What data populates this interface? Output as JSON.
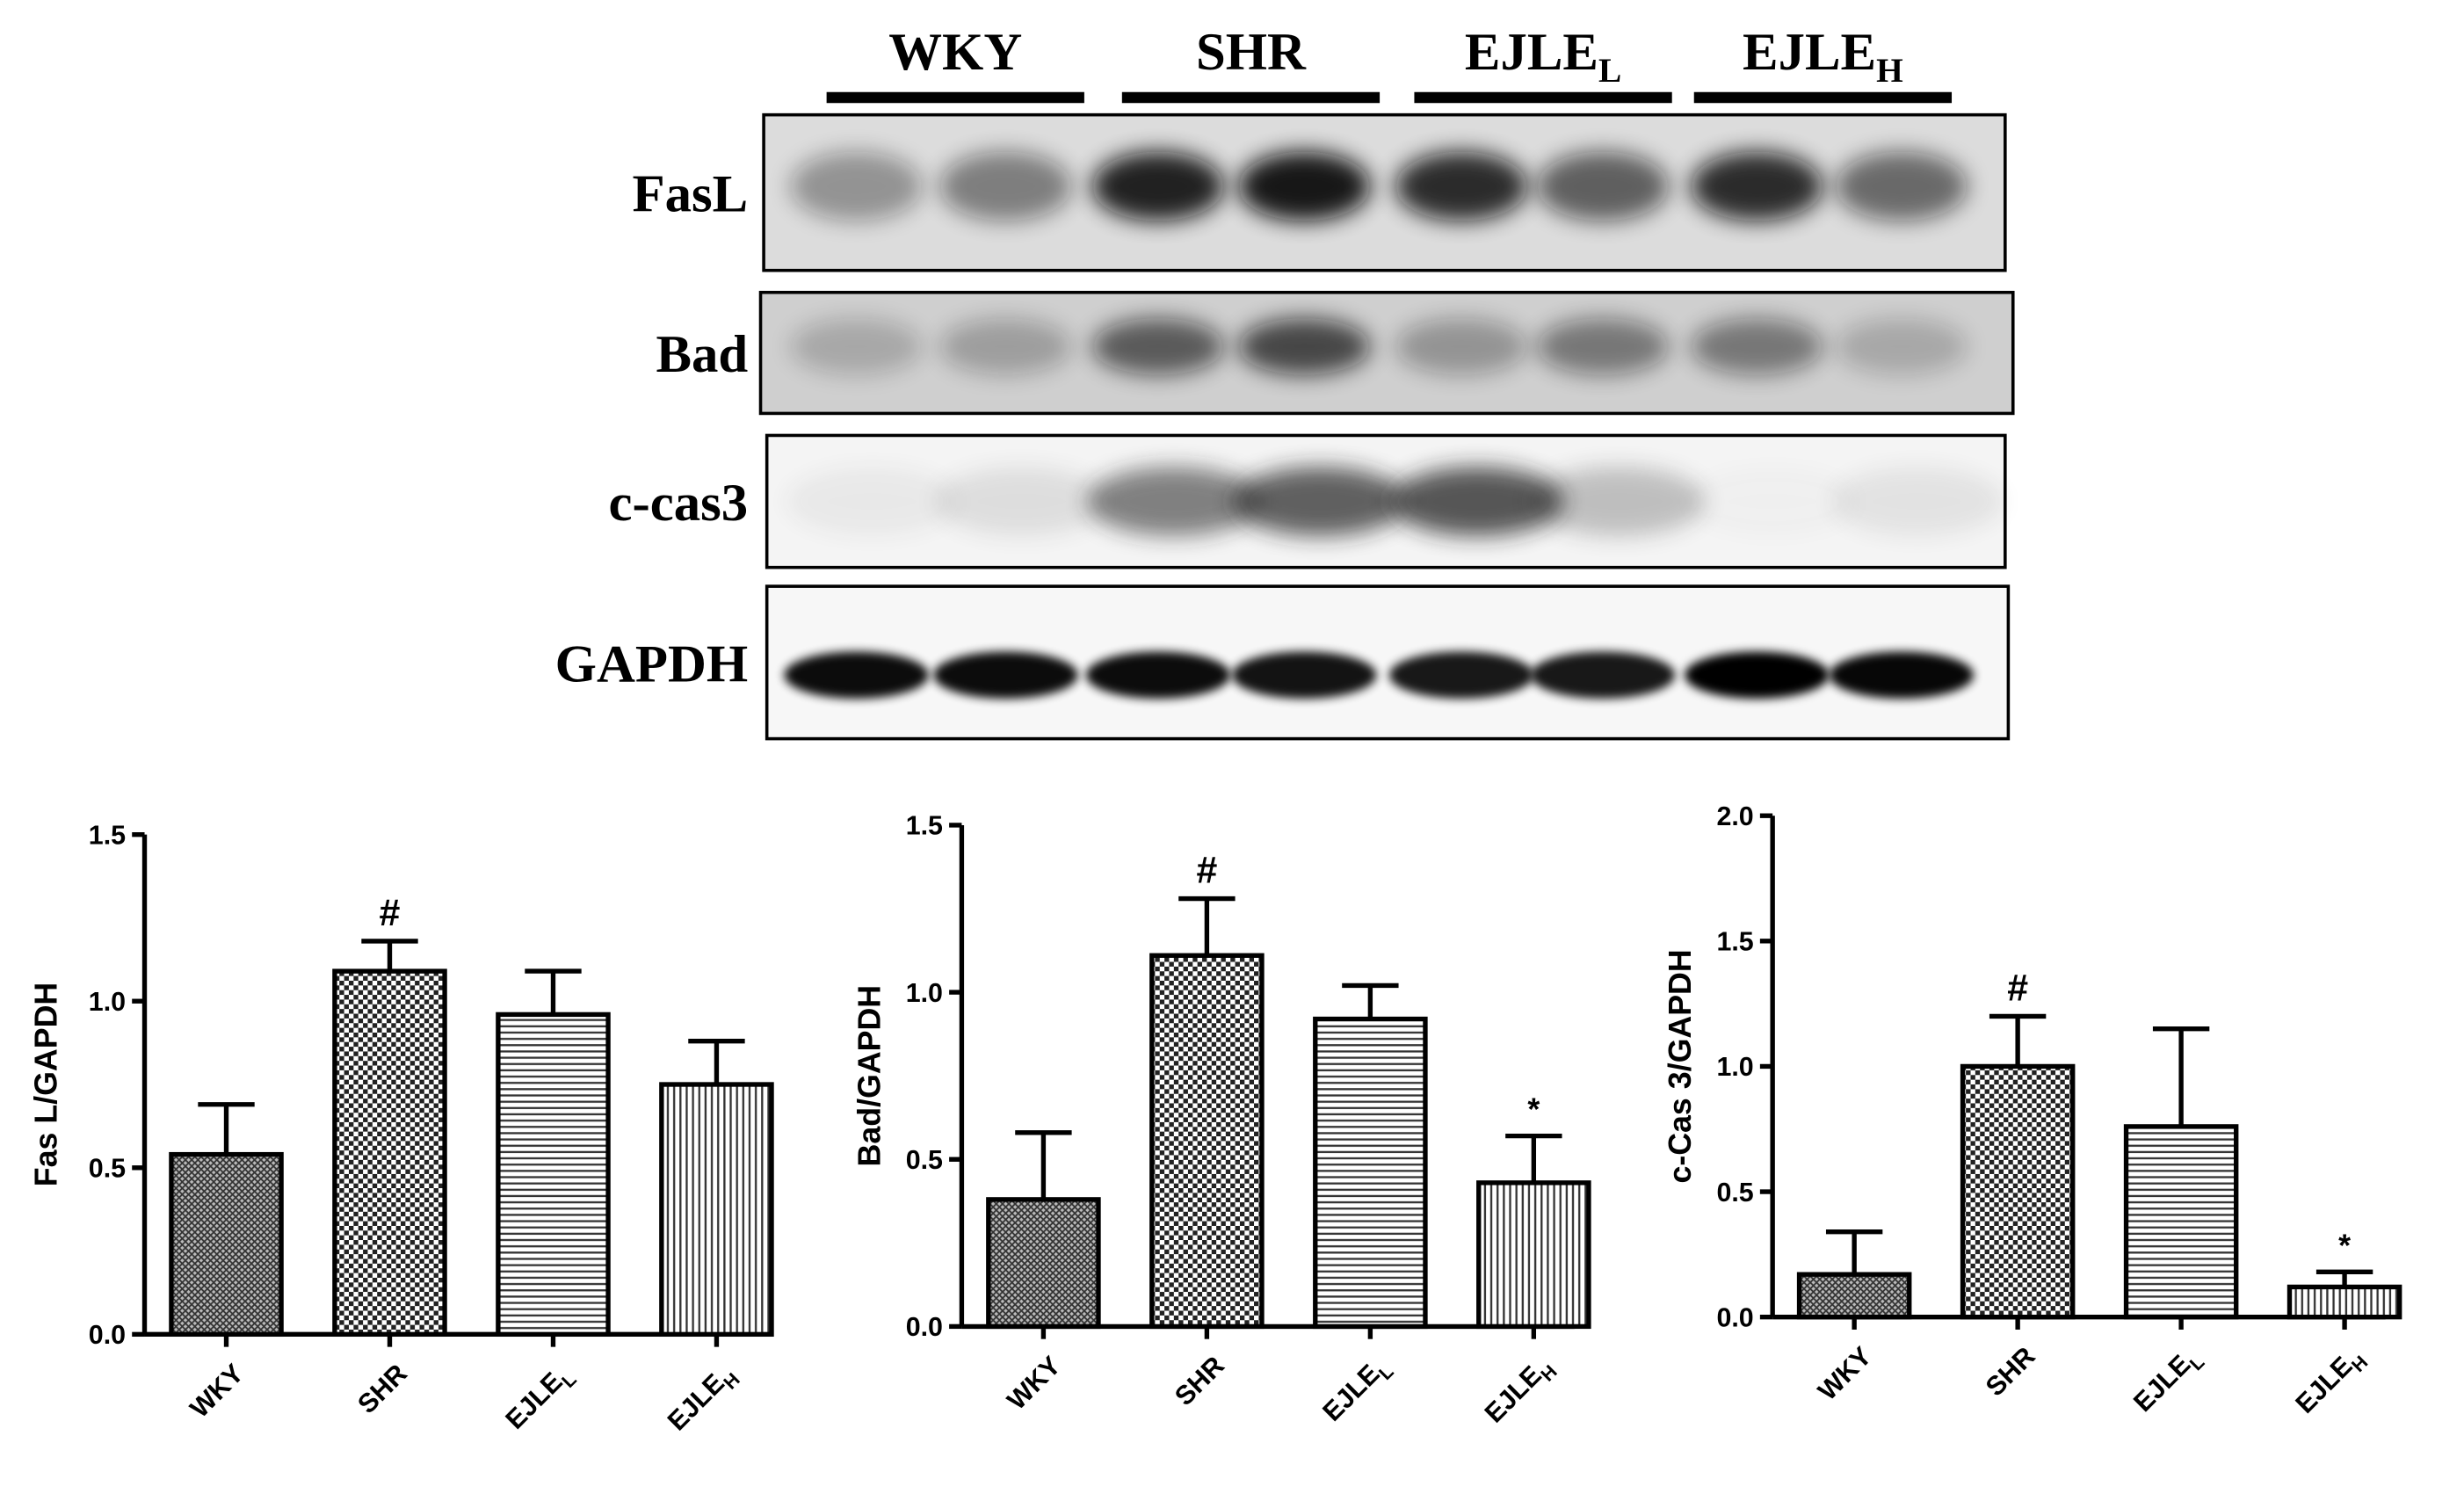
{
  "blot": {
    "groups": [
      {
        "name": "WKY",
        "sub": null
      },
      {
        "name": "SHR",
        "sub": null
      },
      {
        "name": "EJLE",
        "sub": "L"
      },
      {
        "name": "EJLE",
        "sub": "H"
      }
    ],
    "rows": [
      "FasL",
      "Bad",
      "c-cas3",
      "GAPDH"
    ]
  },
  "chart_data": [
    {
      "type": "bar",
      "ylabel": "Fas L/GAPDH",
      "categories": [
        "WKY",
        "SHR",
        "EJLE",
        "EJLE"
      ],
      "category_subscripts": [
        null,
        null,
        "L",
        "H"
      ],
      "values": [
        0.54,
        1.09,
        0.96,
        0.75
      ],
      "errors": [
        0.15,
        0.09,
        0.13,
        0.13
      ],
      "markers": [
        null,
        "#",
        null,
        null
      ],
      "patterns": [
        "crosshatch",
        "checker",
        "horizontal",
        "vertical"
      ],
      "ylim": [
        0,
        1.5
      ],
      "yticks": [
        {
          "value": 0,
          "label": "0.0"
        },
        0.5,
        {
          "value": 1,
          "label": "1.0"
        },
        1.5
      ]
    },
    {
      "type": "bar",
      "ylabel": "Bad/GAPDH",
      "categories": [
        "WKY",
        "SHR",
        "EJLE",
        "EJLE"
      ],
      "category_subscripts": [
        null,
        null,
        "L",
        "H"
      ],
      "values": [
        0.38,
        1.11,
        0.92,
        0.43
      ],
      "errors": [
        0.2,
        0.17,
        0.1,
        0.14
      ],
      "markers": [
        null,
        "#",
        null,
        "*"
      ],
      "patterns": [
        "crosshatch",
        "checker",
        "horizontal",
        "vertical"
      ],
      "ylim": [
        0,
        1.5
      ],
      "yticks": [
        {
          "value": 0,
          "label": "0.0"
        },
        0.5,
        {
          "value": 1,
          "label": "1.0"
        },
        1.5
      ]
    },
    {
      "type": "bar",
      "ylabel": "c-Cas 3/GAPDH",
      "categories": [
        "WKY",
        "SHR",
        "EJLE",
        "EJLE"
      ],
      "category_subscripts": [
        null,
        null,
        "L",
        "H"
      ],
      "values": [
        0.17,
        1.0,
        0.76,
        0.12
      ],
      "errors": [
        0.17,
        0.2,
        0.39,
        0.06
      ],
      "markers": [
        null,
        "#",
        null,
        "*"
      ],
      "patterns": [
        "crosshatch",
        "checker",
        "horizontal",
        "vertical"
      ],
      "ylim": [
        0,
        2
      ],
      "yticks": [
        {
          "value": 0,
          "label": "0.0"
        },
        0.5,
        {
          "value": 1,
          "label": "1.0"
        },
        1.5,
        {
          "value": 2,
          "label": "2.0"
        }
      ]
    }
  ]
}
